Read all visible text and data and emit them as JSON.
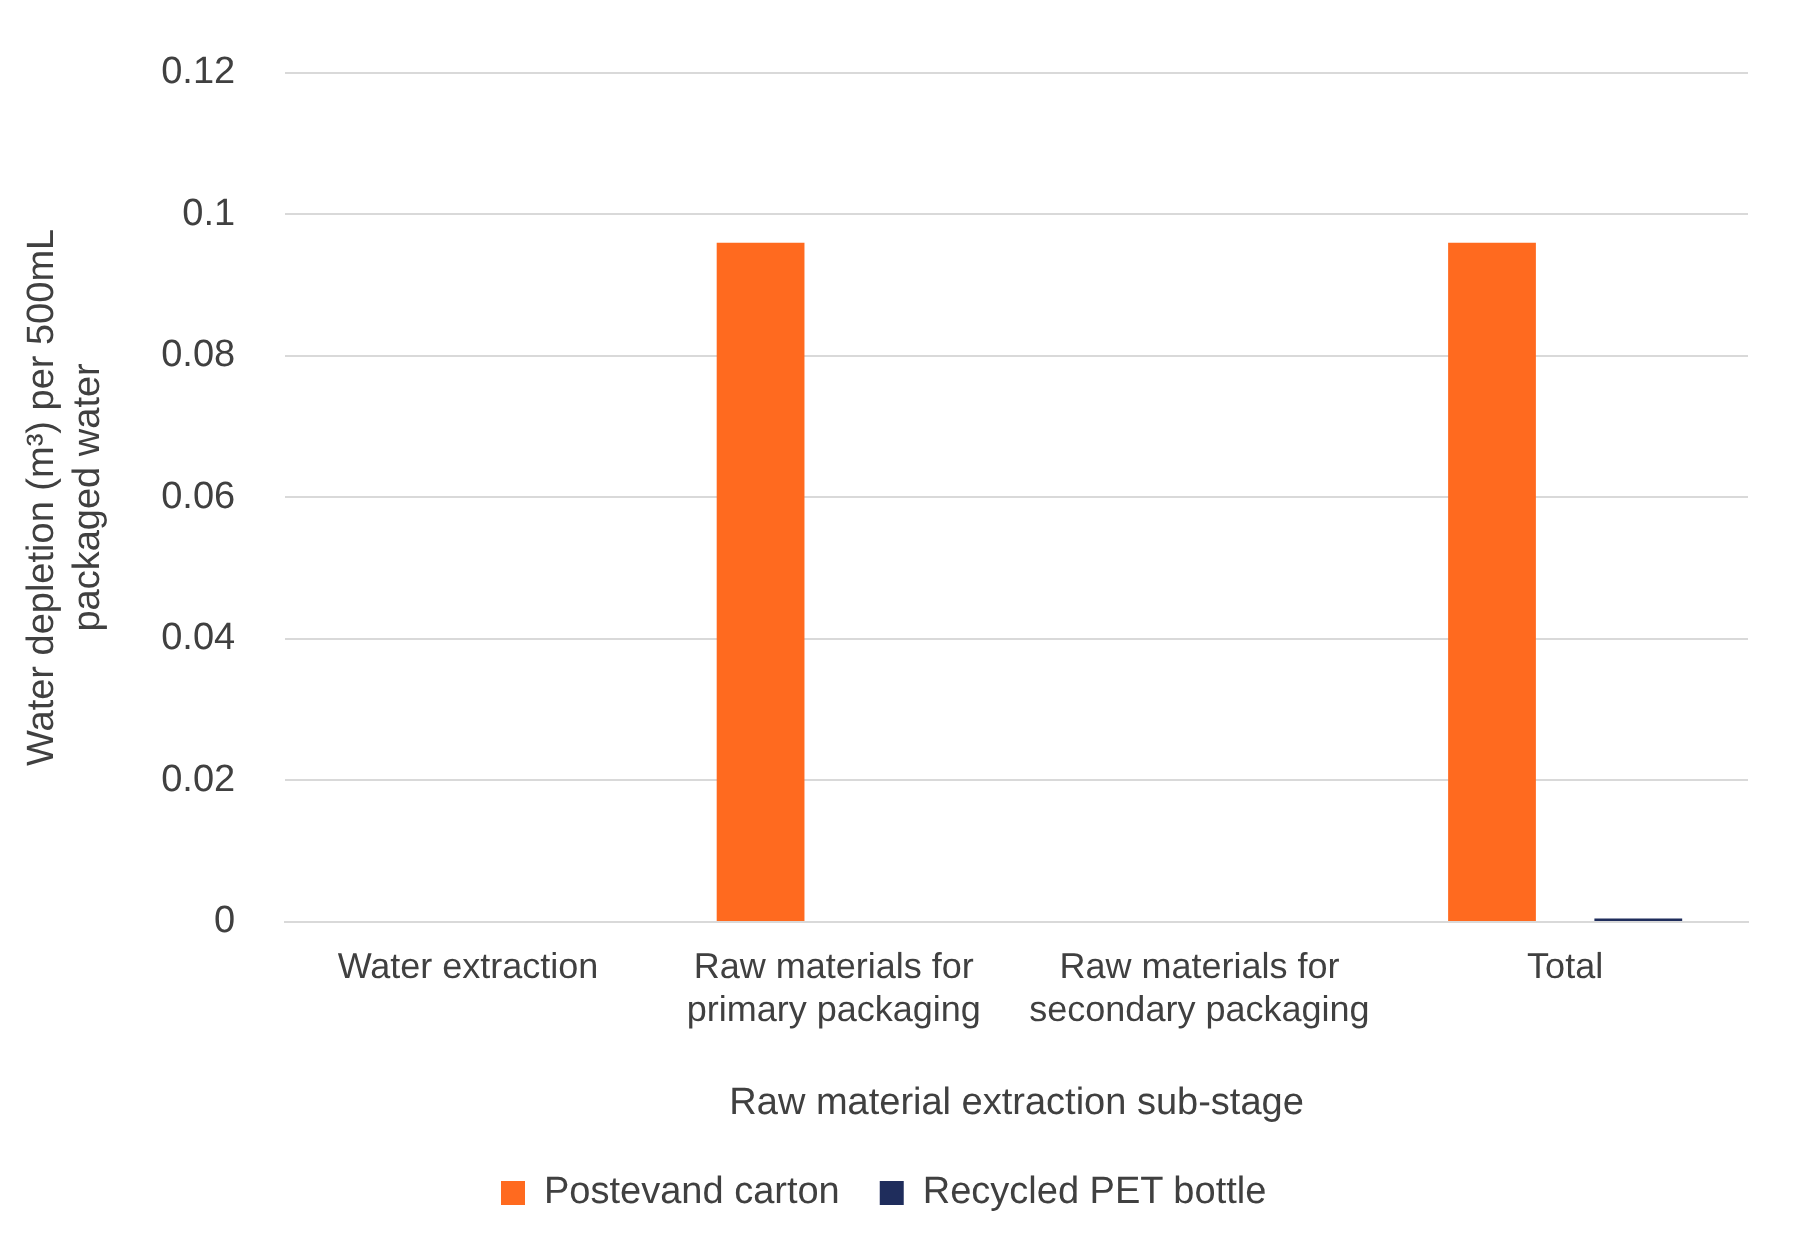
{
  "chart_data": {
    "type": "bar",
    "xlabel": "Raw material extraction sub-stage",
    "ylabel": "Water depletion (m³) per 500mL packaged water",
    "categories": [
      "Water extraction",
      "Raw materials for primary packaging",
      "Raw materials for secondary packaging",
      "Total"
    ],
    "series": [
      {
        "name": "Postevand carton",
        "color": "#ff6a1f",
        "values": [
          0,
          0.096,
          0,
          0.096
        ]
      },
      {
        "name": "Recycled PET bottle",
        "color": "#1f2d5c",
        "values": [
          0,
          0,
          0,
          0.0005
        ]
      }
    ],
    "ylim": [
      0,
      0.12
    ],
    "yticks": [
      0,
      0.02,
      0.04,
      0.06,
      0.08,
      {
        "value": 0.1,
        "label": "0.1"
      },
      0.12
    ],
    "grid": "y",
    "legend": "bottom"
  }
}
